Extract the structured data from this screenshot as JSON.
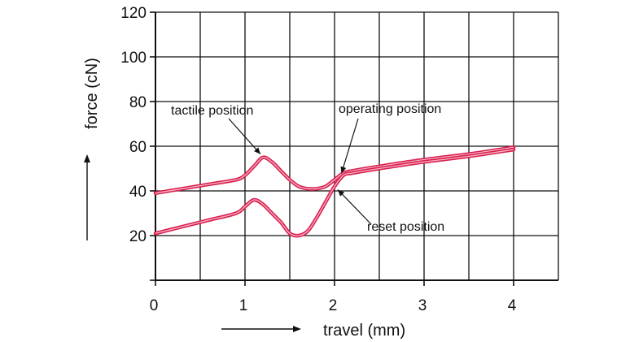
{
  "chart_data": {
    "type": "line",
    "title": "",
    "xlabel": "travel (mm)",
    "ylabel": "force (cN)",
    "xlim": [
      0,
      4.5
    ],
    "ylim": [
      0,
      120
    ],
    "x_ticks": [
      0,
      1,
      2,
      3,
      4
    ],
    "y_ticks": [
      20,
      40,
      60,
      80,
      100,
      120
    ],
    "grid": true,
    "legend": "none",
    "series_color": "#d9204f",
    "series": [
      {
        "x": [
          0,
          0.3,
          0.6,
          0.9,
          1.0,
          1.1,
          1.2,
          1.3,
          1.4,
          1.5,
          1.6,
          1.7,
          1.8,
          1.9,
          2.0,
          2.1,
          2.2,
          2.5,
          3.0,
          3.5,
          4.0
        ],
        "values": [
          39,
          41,
          43,
          45,
          47,
          51,
          55,
          53,
          49,
          45,
          42,
          41,
          41,
          42,
          45,
          48,
          49,
          51,
          54,
          56.5,
          59.5
        ]
      },
      {
        "x": [
          0,
          0.3,
          0.6,
          0.9,
          1.0,
          1.1,
          1.2,
          1.3,
          1.4,
          1.5,
          1.6,
          1.7,
          1.8,
          1.9,
          2.0,
          2.1,
          2.2,
          2.5,
          3.0,
          3.5,
          4.0
        ],
        "values": [
          21,
          24,
          27,
          30,
          33,
          36,
          34,
          30,
          26,
          21,
          20,
          22,
          28,
          35,
          42,
          47,
          48,
          50,
          53,
          55.5,
          58.5
        ]
      }
    ],
    "annotations": [
      {
        "text": "tactile position",
        "x": 1.2,
        "y": 55
      },
      {
        "text": "operating position",
        "x": 2.05,
        "y": 46
      },
      {
        "text": "reset position",
        "x": 2.0,
        "y": 42
      }
    ]
  }
}
